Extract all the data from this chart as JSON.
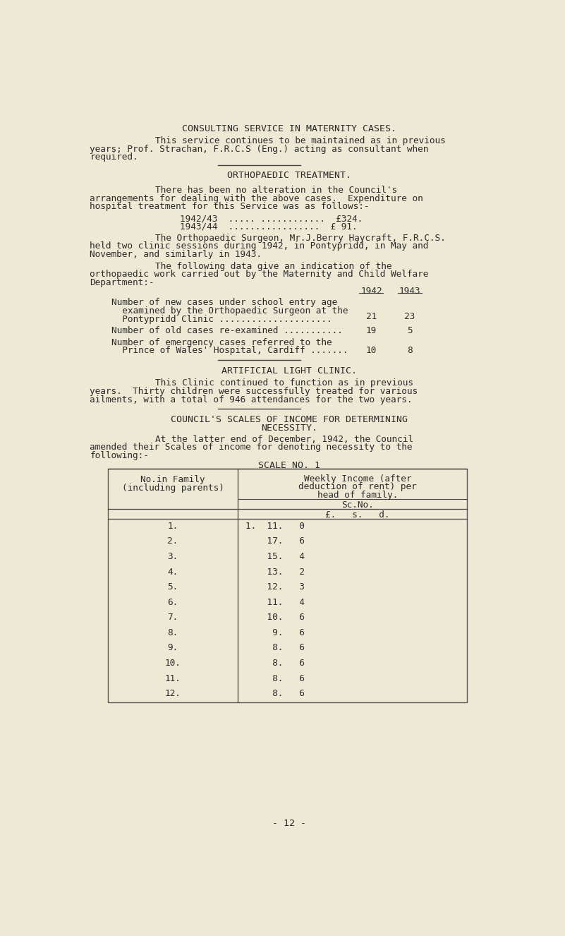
{
  "bg_color": "#ede9d5",
  "text_color": "#2a2a2a",
  "title1": "CONSULTING SERVICE IN MATERNITY CASES.",
  "para1_line1": "This service continues to be maintained as in previous",
  "para1_line2": "years; Prof. Strachan, F.R.C.S (Eng.) acting as consultant when",
  "para1_line3": "required.",
  "title2": "ORTHOPAEDIC TREATMENT.",
  "para2_line1": "There has been no alteration in the Council's",
  "para2_line2": "arrangements for dealing with the above cases.  Expenditure on",
  "para2_line3": "hospital treatment for this Service was as follows:-",
  "exp1": "1942/43  ..... ............  £324.",
  "exp2": "1943/44  .................  £ 91.",
  "para3_line1": "The Orthopaedic Surgeon, Mr.J.Berry Haycraft, F.R.C.S.",
  "para3_line2": "held two clinic sessions during 1942, in Pontypridd, in May and",
  "para3_line3": "November, and similarly in 1943.",
  "para4_line1": "The following data give an indication of the",
  "para4_line2": "orthopaedic work carried out by the Maternity and Child Welfare",
  "para4_line3": "Department:-",
  "hdr_1942": "1942",
  "hdr_1943": "1943",
  "t1r1a": "Number of new cases under school entry age",
  "t1r1b": "  examined by the Orthopaedic Surgeon at the",
  "t1r1c": "  Pontypridd Clinic .....................",
  "t1r1_v1": "21",
  "t1r1_v2": "23",
  "t1r2": "Number of old cases re-examined ...........",
  "t1r2_v1": "19",
  "t1r2_v2": "5",
  "t1r3a": "Number of emergency cases referred to the",
  "t1r3b": "  Prince of Wales' Hospital, Cardiff .......",
  "t1r3_v1": "10",
  "t1r3_v2": "8",
  "title3": "ARTIFICIAL LIGHT CLINIC.",
  "para5_line1": "This Clinic continued to function as in previous",
  "para5_line2": "years.  Thirty children were successfully treated for various",
  "para5_line3": "ailments, with a total of 946 attendances for the two years.",
  "title4a": "COUNCIL'S SCALES OF INCOME FOR DETERMINING",
  "title4b": "NECESSITY.",
  "para6_line1": "At the latter end of December, 1942, the Council",
  "para6_line2": "amended their Scales of income for denoting necessity to the",
  "para6_line3": "following:-",
  "scale_title": "SCALE NO. 1",
  "sc_col1_h1": "No.in Family",
  "sc_col1_h2": "(including parents)",
  "sc_col2_h1": "Weekly Income (after",
  "sc_col2_h2": "deduction of rent) per",
  "sc_col2_h3": "head of family.",
  "sc_sub1": "Sc.No.",
  "sc_sub2": "£.   s.   d.",
  "scale_rows": [
    [
      "1.",
      "1.  11.   0"
    ],
    [
      "2.",
      "    17.   6"
    ],
    [
      "3.",
      "    15.   4"
    ],
    [
      "4.",
      "    13.   2"
    ],
    [
      "5.",
      "    12.   3"
    ],
    [
      "6.",
      "    11.   4"
    ],
    [
      "7.",
      "    10.   6"
    ],
    [
      "8.",
      "     9.   6"
    ],
    [
      "9.",
      "     8.   6"
    ],
    [
      "10.",
      "     8.   6"
    ],
    [
      "11.",
      "     8.   6"
    ],
    [
      "12.",
      "     8.   6"
    ]
  ],
  "page_number": "- 12 -"
}
